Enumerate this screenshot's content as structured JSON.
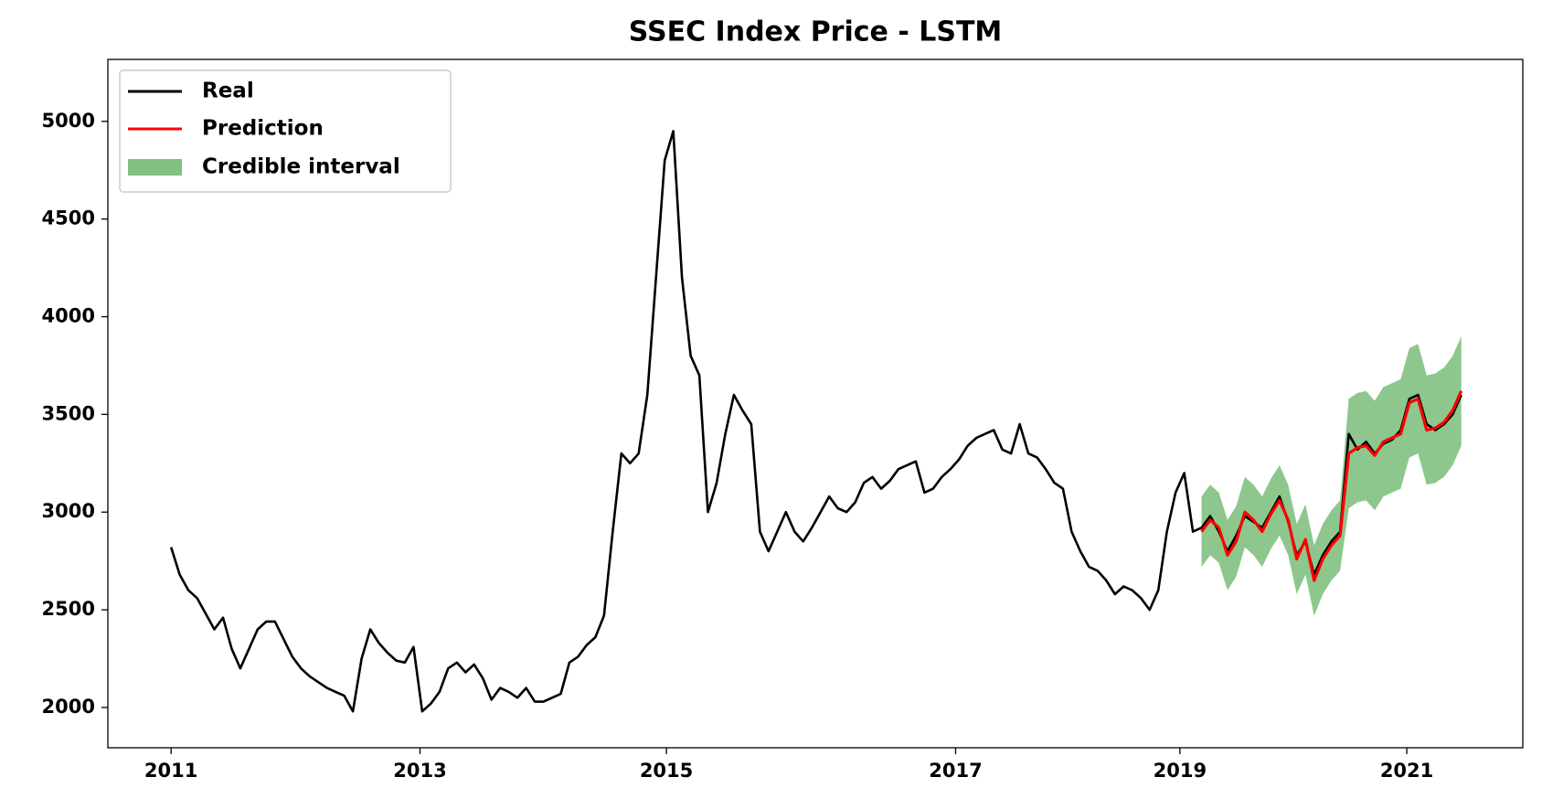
{
  "chart_data": {
    "type": "line",
    "title": "SSEC Index Price - LSTM",
    "xlim": [
      -7.3,
      156.1
    ],
    "xticks": [
      {
        "value": 0,
        "label": "2011"
      },
      {
        "value": 28.75,
        "label": "2013"
      },
      {
        "value": 57.2,
        "label": "2015"
      },
      {
        "value": 90.6,
        "label": "2017"
      },
      {
        "value": 116.5,
        "label": "2019"
      },
      {
        "value": 142.7,
        "label": "2021"
      }
    ],
    "ylim": [
      1794,
      5317
    ],
    "yticks": [
      2000,
      2500,
      3000,
      3500,
      4000,
      4500,
      5000
    ],
    "legend": "upper left",
    "series": [
      {
        "name": "Real",
        "color": "#000000",
        "x": [
          0,
          1,
          2,
          3,
          4,
          5,
          6,
          7,
          8,
          9,
          10,
          11,
          12,
          13,
          14,
          15,
          16,
          17,
          18,
          19,
          20,
          21,
          22,
          23,
          24,
          25,
          26,
          27,
          28,
          29,
          30,
          31,
          32,
          33,
          34,
          35,
          36,
          37,
          38,
          39,
          40,
          41,
          42,
          43,
          44,
          45,
          46,
          47,
          48,
          49,
          50,
          51,
          52,
          53,
          54,
          55,
          56,
          57,
          58,
          59,
          60,
          61,
          62,
          63,
          64,
          65,
          66,
          67,
          68,
          69,
          70,
          71,
          72,
          73,
          74,
          75,
          76,
          77,
          78,
          79,
          80,
          81,
          82,
          83,
          84,
          85,
          86,
          87,
          88,
          89,
          90,
          91,
          92,
          93,
          94,
          95,
          96,
          97,
          98,
          99,
          100,
          101,
          102,
          103,
          104,
          105,
          106,
          107,
          108,
          109,
          110,
          111,
          112,
          113,
          114,
          115,
          116,
          117,
          118,
          119,
          120,
          121,
          122,
          123,
          124,
          125,
          126,
          127,
          128,
          129,
          130,
          131,
          132,
          133,
          134,
          135,
          136,
          137,
          138,
          139,
          140,
          141,
          142,
          143,
          144,
          145,
          146,
          147,
          148,
          149
        ],
        "values": [
          2820,
          2680,
          2600,
          2560,
          2480,
          2400,
          2460,
          2300,
          2200,
          2300,
          2400,
          2440,
          2440,
          2350,
          2260,
          2200,
          2160,
          2130,
          2100,
          2080,
          2060,
          1980,
          2250,
          2400,
          2330,
          2280,
          2240,
          2230,
          2310,
          1980,
          2020,
          2080,
          2200,
          2230,
          2180,
          2220,
          2150,
          2040,
          2100,
          2080,
          2050,
          2100,
          2030,
          2030,
          2050,
          2070,
          2230,
          2260,
          2320,
          2360,
          2470,
          2900,
          3300,
          3250,
          3300,
          3600,
          4200,
          4800,
          4950,
          4200,
          3800,
          3700,
          3000,
          3150,
          3400,
          3600,
          3520,
          3450,
          2900,
          2800,
          2900,
          3000,
          2900,
          2850,
          2920,
          3000,
          3080,
          3020,
          3000,
          3050,
          3150,
          3180,
          3120,
          3160,
          3220,
          3240,
          3260,
          3100,
          3120,
          3180,
          3220,
          3270,
          3340,
          3380,
          3400,
          3420,
          3320,
          3300,
          3450,
          3300,
          3280,
          3220,
          3150,
          3120,
          2900,
          2800,
          2720,
          2700,
          2650,
          2580,
          2620,
          2600,
          2560,
          2500,
          2600,
          2900,
          3100,
          3200,
          2900,
          2920,
          2980,
          2900,
          2800,
          2880,
          2980,
          2950,
          2920,
          3000,
          3080,
          2950,
          2780,
          2850,
          2680,
          2780,
          2850,
          2900,
          3400,
          3320,
          3360,
          3300,
          3350,
          3370,
          3420,
          3580,
          3600,
          3450,
          3420,
          3450,
          3500,
          3600
        ]
      },
      {
        "name": "Prediction",
        "color": "#ff0000",
        "x": [
          119,
          120,
          121,
          122,
          123,
          124,
          125,
          126,
          127,
          128,
          129,
          130,
          131,
          132,
          133,
          134,
          135,
          136,
          137,
          138,
          139,
          140,
          141,
          142,
          143,
          144,
          145,
          146,
          147,
          148,
          149
        ],
        "values": [
          2900,
          2960,
          2920,
          2780,
          2850,
          3000,
          2960,
          2900,
          2990,
          3060,
          2960,
          2760,
          2860,
          2650,
          2760,
          2830,
          2880,
          3300,
          3330,
          3340,
          3290,
          3360,
          3380,
          3400,
          3560,
          3580,
          3420,
          3430,
          3460,
          3520,
          3620
        ]
      }
    ],
    "band": {
      "name": "Credible interval",
      "color": "#81c181",
      "x": [
        119,
        120,
        121,
        122,
        123,
        124,
        125,
        126,
        127,
        128,
        129,
        130,
        131,
        132,
        133,
        134,
        135,
        136,
        137,
        138,
        139,
        140,
        141,
        142,
        143,
        144,
        145,
        146,
        147,
        148,
        149
      ],
      "lower": [
        2720,
        2780,
        2740,
        2600,
        2670,
        2820,
        2780,
        2720,
        2810,
        2880,
        2780,
        2580,
        2680,
        2470,
        2580,
        2650,
        2700,
        3020,
        3050,
        3060,
        3010,
        3080,
        3100,
        3120,
        3280,
        3300,
        3140,
        3150,
        3180,
        3240,
        3340
      ],
      "upper": [
        3080,
        3140,
        3100,
        2960,
        3030,
        3180,
        3140,
        3080,
        3170,
        3240,
        3140,
        2940,
        3040,
        2830,
        2940,
        3010,
        3060,
        3580,
        3610,
        3620,
        3570,
        3640,
        3660,
        3680,
        3840,
        3860,
        3700,
        3710,
        3740,
        3800,
        3900
      ]
    }
  }
}
